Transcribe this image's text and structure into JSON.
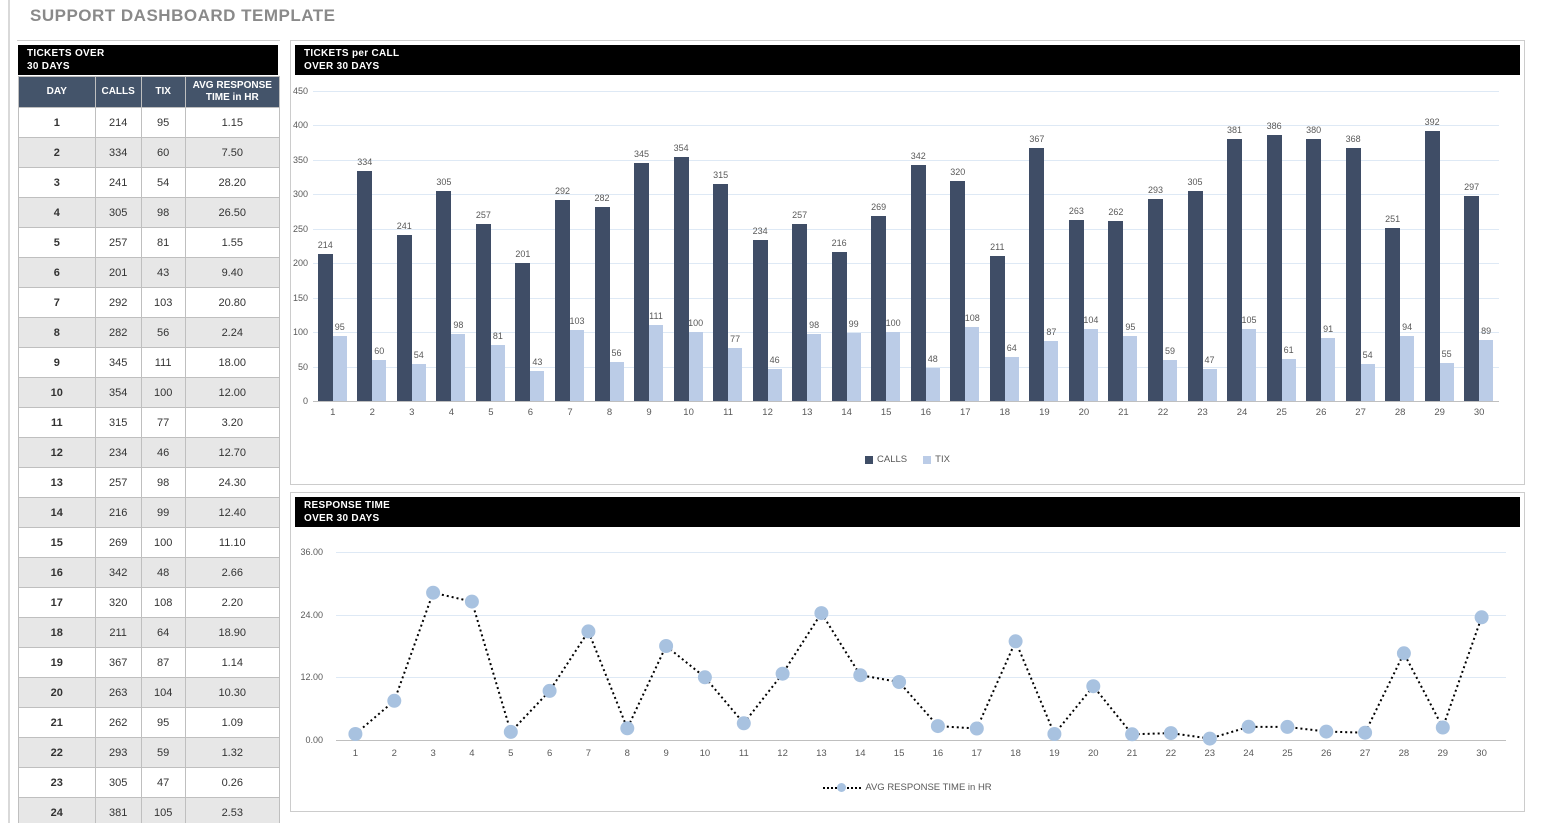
{
  "page": {
    "title": "SUPPORT DASHBOARD TEMPLATE"
  },
  "colors": {
    "accent_dark": "#3F4D66",
    "accent_light": "#BBCCE7",
    "marker_blue": "#A8C2E0",
    "table_header_bg": "#44546A",
    "band_bg": "#000000",
    "grid_blue": "#DEE9F5",
    "label_gray": "#595959",
    "title_gray": "#8A8A8A"
  },
  "table": {
    "title_line1": "TICKETS OVER",
    "title_line2": "30 DAYS",
    "columns": [
      "DAY",
      "CALLS",
      "TIX",
      "AVG RESPONSE TIME in HR"
    ],
    "rows": [
      [
        "1",
        "214",
        "95",
        "1.15"
      ],
      [
        "2",
        "334",
        "60",
        "7.50"
      ],
      [
        "3",
        "241",
        "54",
        "28.20"
      ],
      [
        "4",
        "305",
        "98",
        "26.50"
      ],
      [
        "5",
        "257",
        "81",
        "1.55"
      ],
      [
        "6",
        "201",
        "43",
        "9.40"
      ],
      [
        "7",
        "292",
        "103",
        "20.80"
      ],
      [
        "8",
        "282",
        "56",
        "2.24"
      ],
      [
        "9",
        "345",
        "111",
        "18.00"
      ],
      [
        "10",
        "354",
        "100",
        "12.00"
      ],
      [
        "11",
        "315",
        "77",
        "3.20"
      ],
      [
        "12",
        "234",
        "46",
        "12.70"
      ],
      [
        "13",
        "257",
        "98",
        "24.30"
      ],
      [
        "14",
        "216",
        "99",
        "12.40"
      ],
      [
        "15",
        "269",
        "100",
        "11.10"
      ],
      [
        "16",
        "342",
        "48",
        "2.66"
      ],
      [
        "17",
        "320",
        "108",
        "2.20"
      ],
      [
        "18",
        "211",
        "64",
        "18.90"
      ],
      [
        "19",
        "367",
        "87",
        "1.14"
      ],
      [
        "20",
        "263",
        "104",
        "10.30"
      ],
      [
        "21",
        "262",
        "95",
        "1.09"
      ],
      [
        "22",
        "293",
        "59",
        "1.32"
      ],
      [
        "23",
        "305",
        "47",
        "0.26"
      ],
      [
        "24",
        "381",
        "105",
        "2.53"
      ]
    ]
  },
  "chart_data": [
    {
      "type": "bar",
      "title_line1": "TICKETS per CALL",
      "title_line2": "OVER 30 DAYS",
      "categories": [
        1,
        2,
        3,
        4,
        5,
        6,
        7,
        8,
        9,
        10,
        11,
        12,
        13,
        14,
        15,
        16,
        17,
        18,
        19,
        20,
        21,
        22,
        23,
        24,
        25,
        26,
        27,
        28,
        29,
        30
      ],
      "series": [
        {
          "name": "CALLS",
          "color": "#3F4D66",
          "values": [
            214,
            334,
            241,
            305,
            257,
            201,
            292,
            282,
            345,
            354,
            315,
            234,
            257,
            216,
            269,
            342,
            320,
            211,
            367,
            263,
            262,
            293,
            305,
            381,
            386,
            380,
            368,
            251,
            392,
            297
          ]
        },
        {
          "name": "TIX",
          "color": "#BBCCE7",
          "values": [
            95,
            60,
            54,
            98,
            81,
            43,
            103,
            56,
            111,
            100,
            77,
            46,
            98,
            99,
            100,
            48,
            108,
            64,
            87,
            104,
            95,
            59,
            47,
            105,
            61,
            91,
            54,
            94,
            55,
            89
          ]
        }
      ],
      "ylim": [
        0,
        450
      ],
      "ytick_step": 50,
      "grid": true,
      "legend_position": "bottom"
    },
    {
      "type": "line",
      "title_line1": "RESPONSE TIME",
      "title_line2": "OVER 30 DAYS",
      "categories": [
        1,
        2,
        3,
        4,
        5,
        6,
        7,
        8,
        9,
        10,
        11,
        12,
        13,
        14,
        15,
        16,
        17,
        18,
        19,
        20,
        21,
        22,
        23,
        24,
        25,
        26,
        27,
        28,
        29,
        30
      ],
      "series": [
        {
          "name": "AVG RESPONSE TIME in HR",
          "line_color": "#000000",
          "line_style": "dotted",
          "marker_color": "#A8C2E0",
          "values": [
            1.15,
            7.5,
            28.2,
            26.5,
            1.55,
            9.4,
            20.8,
            2.24,
            18.0,
            12.0,
            3.2,
            12.7,
            24.3,
            12.4,
            11.1,
            2.66,
            2.2,
            18.9,
            1.14,
            10.3,
            1.09,
            1.32,
            0.26,
            2.53,
            2.5,
            1.6,
            1.4,
            16.6,
            2.4,
            23.5
          ]
        }
      ],
      "ylim": [
        0,
        36
      ],
      "ytick_step": 12,
      "ytick_decimals": 2,
      "grid": true,
      "legend_position": "bottom"
    }
  ]
}
